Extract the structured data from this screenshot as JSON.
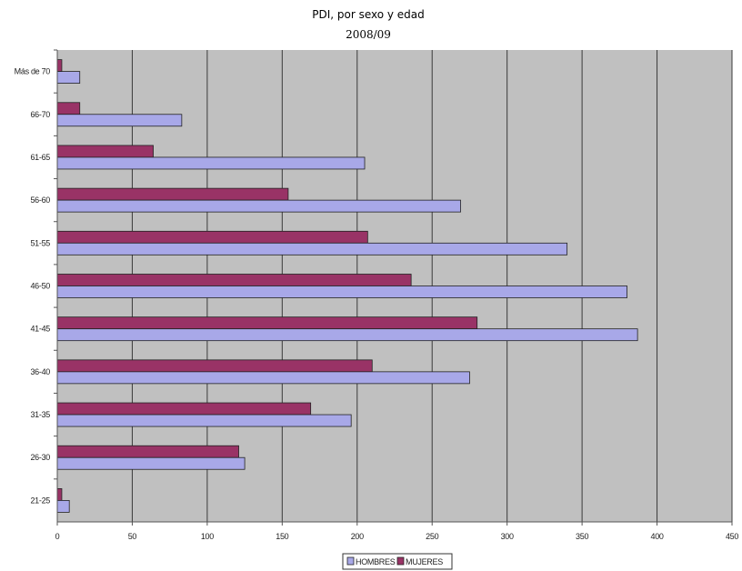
{
  "chart_data": {
    "type": "bar",
    "orientation": "horizontal",
    "title": "PDI, por sexo y edad",
    "subtitle": "2008/09",
    "categories": [
      "21-25",
      "26-30",
      "31-35",
      "36-40",
      "41-45",
      "46-50",
      "51-55",
      "56-60",
      "61-65",
      "66-70",
      "Más de 70"
    ],
    "series": [
      {
        "name": "HOMBRES",
        "color": "#a8a8e8",
        "values": [
          8,
          125,
          196,
          275,
          387,
          380,
          340,
          269,
          205,
          83,
          15
        ]
      },
      {
        "name": "MUJERES",
        "color": "#993366",
        "values": [
          3,
          121,
          169,
          210,
          280,
          236,
          207,
          154,
          64,
          15,
          3
        ]
      }
    ],
    "x_ticks": [
      "0",
      "50",
      "100",
      "150",
      "200",
      "250",
      "300",
      "350",
      "400",
      "450"
    ],
    "xlim": [
      0,
      450
    ],
    "grid": "vertical",
    "plot_background": "#c0c0c0",
    "legend_position": "bottom"
  }
}
